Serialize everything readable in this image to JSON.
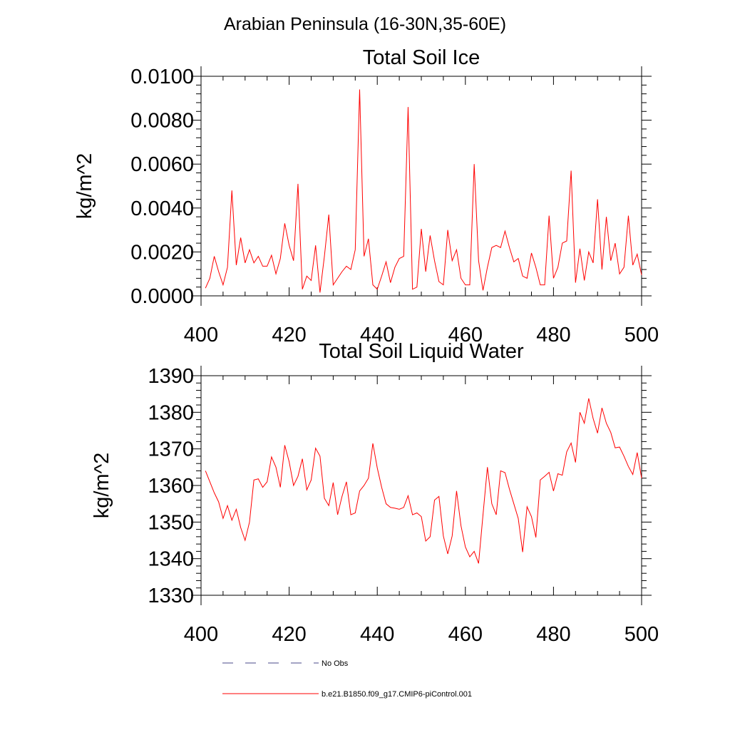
{
  "figure_title": "Arabian Peninsula (16-30N,35-60E)",
  "legend": [
    {
      "label": "No Obs",
      "color": "#4a4a8a",
      "dash": true
    },
    {
      "label": "b.e21.B1850.f09_g17.CMIP6-piControl.001",
      "color": "#ff0000",
      "dash": false
    }
  ],
  "chart_data": [
    {
      "type": "line",
      "title": "Total Soil Ice",
      "xlabel": "",
      "ylabel": "kg/m^2",
      "xlim": [
        400,
        500
      ],
      "ylim": [
        0,
        0.01
      ],
      "xticks": [
        400,
        420,
        440,
        460,
        480,
        500
      ],
      "xtick_labels": [
        "400",
        "420",
        "440",
        "460",
        "480",
        "500"
      ],
      "yticks": [
        0,
        0.002,
        0.004,
        0.006,
        0.008,
        0.01
      ],
      "ytick_labels": [
        "0.0000",
        "0.0020",
        "0.0040",
        "0.0060",
        "0.0080",
        "0.0100"
      ],
      "series": [
        {
          "name": "b.e21.B1850.f09_g17.CMIP6-piControl.001",
          "color": "#ff0000",
          "x": [
            401,
            402,
            403,
            404,
            405,
            406,
            407,
            408,
            409,
            410,
            411,
            412,
            413,
            414,
            415,
            416,
            417,
            418,
            419,
            420,
            421,
            422,
            423,
            424,
            425,
            426,
            427,
            428,
            429,
            430,
            431,
            432,
            433,
            434,
            435,
            436,
            437,
            438,
            439,
            440,
            441,
            442,
            443,
            444,
            445,
            446,
            447,
            448,
            449,
            450,
            451,
            452,
            453,
            454,
            455,
            456,
            457,
            458,
            459,
            460,
            461,
            462,
            463,
            464,
            465,
            466,
            467,
            468,
            469,
            470,
            471,
            472,
            473,
            474,
            475,
            476,
            477,
            478,
            479,
            480,
            481,
            482,
            483,
            484,
            485,
            486,
            487,
            488,
            489,
            490,
            491,
            492,
            493,
            494,
            495,
            496,
            497,
            498,
            499,
            500
          ],
          "values": [
            0.00035,
            0.0008,
            0.0018,
            0.0011,
            0.0005,
            0.0013,
            0.0048,
            0.0014,
            0.00265,
            0.0015,
            0.0021,
            0.0015,
            0.0018,
            0.00135,
            0.00135,
            0.00185,
            0.001,
            0.0017,
            0.0033,
            0.0023,
            0.0016,
            0.0051,
            0.0003,
            0.0009,
            0.0007,
            0.0023,
            0.00015,
            0.0018,
            0.0037,
            0.0005,
            0.0008,
            0.0011,
            0.00135,
            0.0012,
            0.0021,
            0.0094,
            0.0018,
            0.0026,
            0.0005,
            0.0003,
            0.0009,
            0.00155,
            0.0006,
            0.0013,
            0.0017,
            0.0018,
            0.0086,
            0.0003,
            0.0004,
            0.00305,
            0.0011,
            0.00275,
            0.0016,
            0.00065,
            0.0005,
            0.003,
            0.0016,
            0.0021,
            0.0008,
            0.0005,
            0.0005,
            0.006,
            0.0016,
            0.00025,
            0.0013,
            0.0022,
            0.0023,
            0.0022,
            0.00295,
            0.0022,
            0.00155,
            0.0017,
            0.0009,
            0.0008,
            0.00195,
            0.0013,
            0.0005,
            0.0005,
            0.00365,
            0.0008,
            0.0013,
            0.0024,
            0.0025,
            0.0057,
            0.0006,
            0.00215,
            0.0007,
            0.002,
            0.0015,
            0.0044,
            0.0012,
            0.0036,
            0.0016,
            0.0024,
            0.001,
            0.0013,
            0.00365,
            0.0014,
            0.0019,
            0.00095
          ]
        }
      ]
    },
    {
      "type": "line",
      "title": "Total Soil Liquid Water",
      "xlabel": "",
      "ylabel": "kg/m^2",
      "xlim": [
        400,
        500
      ],
      "ylim": [
        1330,
        1390
      ],
      "xticks": [
        400,
        420,
        440,
        460,
        480,
        500
      ],
      "xtick_labels": [
        "400",
        "420",
        "440",
        "460",
        "480",
        "500"
      ],
      "yticks": [
        1330,
        1340,
        1350,
        1360,
        1370,
        1380,
        1390
      ],
      "ytick_labels": [
        "1330",
        "1340",
        "1350",
        "1360",
        "1370",
        "1380",
        "1390"
      ],
      "series": [
        {
          "name": "b.e21.B1850.f09_g17.CMIP6-piControl.001",
          "color": "#ff0000",
          "x": [
            401,
            402,
            403,
            404,
            405,
            406,
            407,
            408,
            409,
            410,
            411,
            412,
            413,
            414,
            415,
            416,
            417,
            418,
            419,
            420,
            421,
            422,
            423,
            424,
            425,
            426,
            427,
            428,
            429,
            430,
            431,
            432,
            433,
            434,
            435,
            436,
            437,
            438,
            439,
            440,
            441,
            442,
            443,
            444,
            445,
            446,
            447,
            448,
            449,
            450,
            451,
            452,
            453,
            454,
            455,
            456,
            457,
            458,
            459,
            460,
            461,
            462,
            463,
            464,
            465,
            466,
            467,
            468,
            469,
            470,
            471,
            472,
            473,
            474,
            475,
            476,
            477,
            478,
            479,
            480,
            481,
            482,
            483,
            484,
            485,
            486,
            487,
            488,
            489,
            490,
            491,
            492,
            493,
            494,
            495,
            496,
            497,
            498,
            499,
            500
          ],
          "values": [
            1364,
            1361,
            1358,
            1355.5,
            1351,
            1354.5,
            1350.5,
            1353.5,
            1348.5,
            1345,
            1350,
            1361.5,
            1361.8,
            1359.5,
            1361,
            1367.8,
            1365,
            1359.5,
            1371,
            1366.5,
            1360,
            1362.5,
            1367.3,
            1358.8,
            1361.5,
            1370.2,
            1368,
            1356.5,
            1354.5,
            1360.8,
            1352,
            1357,
            1361,
            1352,
            1352.5,
            1358.5,
            1360,
            1362,
            1371.5,
            1364.8,
            1359.5,
            1355,
            1354,
            1353.8,
            1353.5,
            1354,
            1357.2,
            1352,
            1352.5,
            1351.5,
            1344.8,
            1346,
            1356,
            1357,
            1346.2,
            1341.3,
            1346.2,
            1358.5,
            1349,
            1343.2,
            1340.5,
            1342,
            1338.7,
            1352,
            1365,
            1355,
            1352,
            1364,
            1363.5,
            1359,
            1355,
            1351,
            1341.8,
            1354.2,
            1351.5,
            1345.8,
            1361.5,
            1362.5,
            1363.6,
            1358.5,
            1363.2,
            1362.8,
            1369.2,
            1371.6,
            1366.3,
            1380,
            1377,
            1383.8,
            1378.3,
            1374.3,
            1381.2,
            1377,
            1374.5,
            1370.3,
            1370.5,
            1368,
            1365.2,
            1363,
            1369,
            1362
          ]
        }
      ]
    }
  ]
}
